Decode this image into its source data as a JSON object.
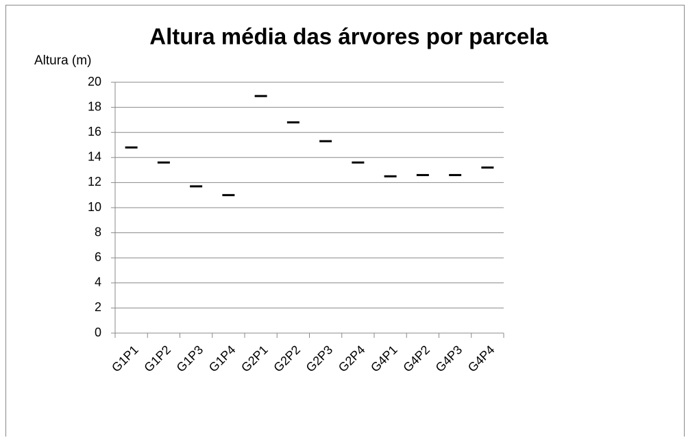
{
  "chart_data": {
    "type": "line",
    "marker": "dash",
    "line": false,
    "title": "Altura média das árvores por parcela",
    "y_label": "Altura (m)",
    "categories": [
      "G1P1",
      "G1P2",
      "G1P3",
      "G1P4",
      "G2P1",
      "G2P2",
      "G2P3",
      "G2P4",
      "G4P1",
      "G4P2",
      "G4P3",
      "G4P4"
    ],
    "values": [
      14.8,
      13.6,
      11.7,
      11.0,
      18.9,
      16.8,
      15.3,
      13.6,
      12.5,
      12.6,
      12.6,
      13.2
    ],
    "color": "#000000",
    "ylim": [
      0,
      20
    ],
    "yticks": [
      0,
      2,
      4,
      6,
      8,
      10,
      12,
      14,
      16,
      18,
      20
    ],
    "grid": true
  }
}
